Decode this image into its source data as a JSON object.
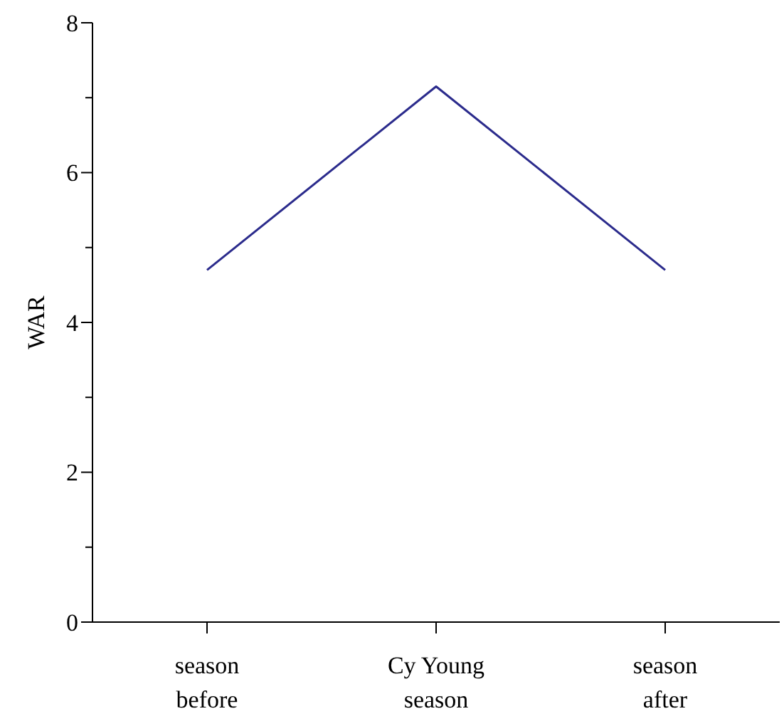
{
  "chart_data": {
    "type": "line",
    "ylabel": "WAR",
    "categories": [
      "season before",
      "Cy Young season",
      "season after"
    ],
    "series": [
      {
        "color": "#2b2b8c",
        "values": [
          4.7,
          7.15,
          4.7
        ]
      }
    ],
    "ylim": [
      0,
      8
    ],
    "yticks": [
      0,
      {
        "value": 1,
        "label": null
      },
      2,
      {
        "value": 3,
        "label": null
      },
      4,
      {
        "value": 5,
        "label": null
      },
      6,
      {
        "value": 7,
        "label": null
      },
      8
    ],
    "grid": false,
    "marker": "none",
    "line_style": "solid"
  }
}
